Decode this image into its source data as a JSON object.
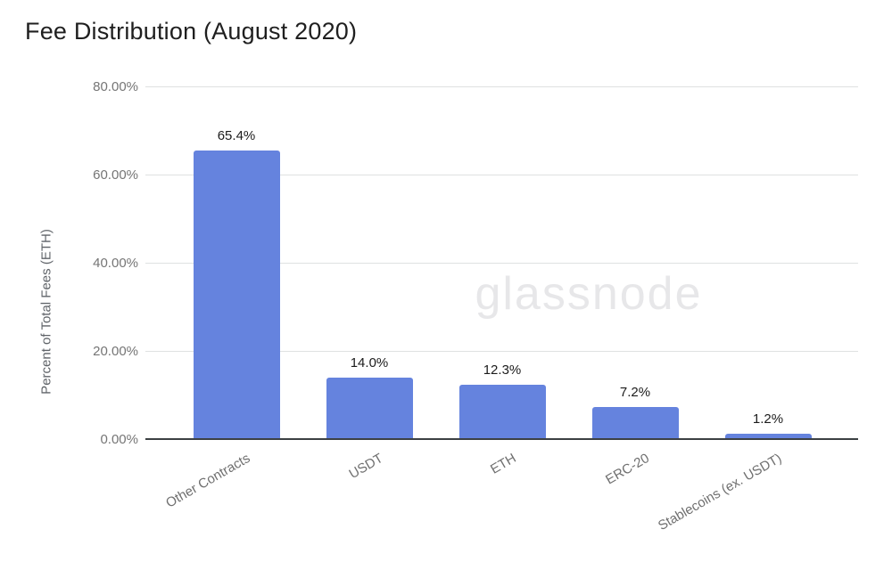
{
  "chart": {
    "title": "Fee Distribution (August 2020)",
    "ylabel": "Percent of Total Fees (ETH)",
    "watermark": "glassnode"
  },
  "chart_data": {
    "type": "bar",
    "title": "Fee Distribution (August 2020)",
    "xlabel": "",
    "ylabel": "Percent of Total Fees (ETH)",
    "categories": [
      "Other Contracts",
      "USDT",
      "ETH",
      "ERC-20",
      "Stablecoins (ex. USDT)"
    ],
    "values": [
      65.4,
      14.0,
      12.3,
      7.2,
      1.2
    ],
    "value_labels": [
      "65.4%",
      "14.0%",
      "12.3%",
      "7.2%",
      "1.2%"
    ],
    "ylim": [
      0,
      80
    ],
    "yticks": [
      {
        "value": 80,
        "label": "80.00%"
      },
      {
        "value": 60,
        "label": "60.00%"
      },
      {
        "value": 40,
        "label": "40.00%"
      },
      {
        "value": 20,
        "label": "20.00%"
      },
      {
        "value": 0,
        "label": "0.00%"
      }
    ],
    "grid": "horizontal",
    "legend": "none",
    "bar_color": "#6583de",
    "watermark": "glassnode"
  }
}
